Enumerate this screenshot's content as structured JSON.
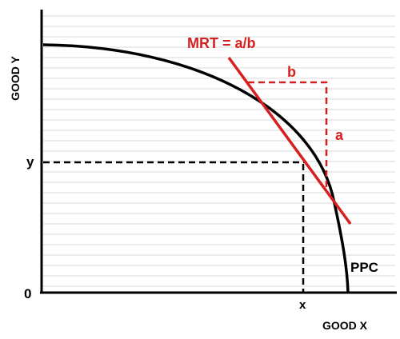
{
  "diagram": {
    "y_axis_label": "GOOD Y",
    "x_axis_label": "GOOD X",
    "origin_label": "0",
    "point_y_label": "y",
    "point_x_label": "x",
    "curve_label": "PPC",
    "tangent_label": "MRT = a/b",
    "rise_label": "a",
    "run_label": "b"
  },
  "colors": {
    "axis": "#000000",
    "curve": "#000000",
    "tangent": "#d62020",
    "grid": "#d9d9d9",
    "text": "#000000"
  }
}
